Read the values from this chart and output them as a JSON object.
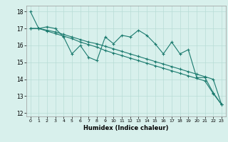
{
  "x": [
    0,
    1,
    2,
    3,
    4,
    5,
    6,
    7,
    8,
    9,
    10,
    11,
    12,
    13,
    14,
    15,
    16,
    17,
    18,
    19,
    20,
    21,
    22,
    23
  ],
  "y_jagged": [
    18,
    17,
    17.1,
    17,
    16.5,
    15.5,
    16,
    15.3,
    15.1,
    16.5,
    16.1,
    16.6,
    16.5,
    16.9,
    16.6,
    16.1,
    15.5,
    16.2,
    15.5,
    15.75,
    14.1,
    14.1,
    13.2,
    12.5
  ],
  "y_line1": [
    17,
    17,
    16.9,
    16.8,
    16.65,
    16.5,
    16.35,
    16.2,
    16.1,
    15.95,
    15.8,
    15.65,
    15.5,
    15.35,
    15.2,
    15.05,
    14.9,
    14.75,
    14.6,
    14.45,
    14.3,
    14.15,
    14.0,
    12.5
  ],
  "y_line2": [
    17,
    17,
    16.85,
    16.7,
    16.55,
    16.4,
    16.2,
    16.05,
    15.9,
    15.7,
    15.55,
    15.4,
    15.25,
    15.1,
    14.95,
    14.8,
    14.65,
    14.5,
    14.35,
    14.2,
    14.05,
    13.9,
    13.15,
    12.5
  ],
  "color": "#1a7a6e",
  "bg_color": "#d8f0ec",
  "grid_color": "#b8dcd6",
  "xlabel": "Humidex (Indice chaleur)",
  "ylim": [
    11.8,
    18.35
  ],
  "xlim": [
    -0.5,
    23.5
  ],
  "yticks": [
    12,
    13,
    14,
    15,
    16,
    17,
    18
  ],
  "xticks": [
    0,
    1,
    2,
    3,
    4,
    5,
    6,
    7,
    8,
    9,
    10,
    11,
    12,
    13,
    14,
    15,
    16,
    17,
    18,
    19,
    20,
    21,
    22,
    23
  ]
}
